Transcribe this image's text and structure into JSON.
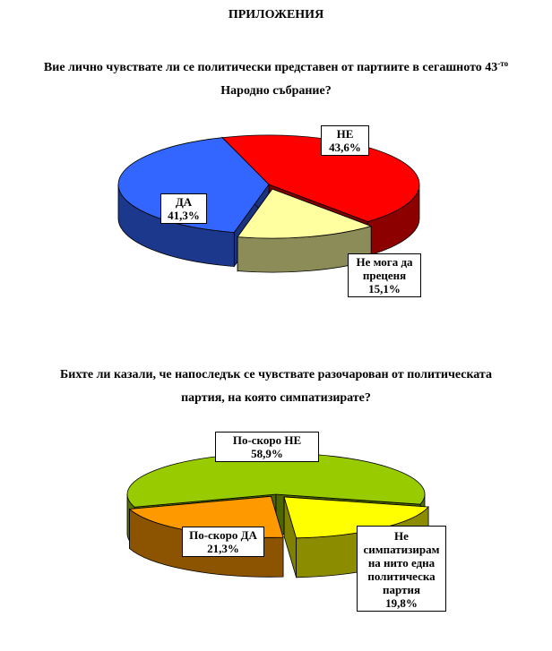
{
  "page": {
    "heading": "ПРИЛОЖЕНИЯ"
  },
  "q1": {
    "text": "Вие лично чувствате ли се политически представен от партиите в сегашното 43",
    "sup": "-то",
    "text2": "Народно събрание?"
  },
  "q2": {
    "line1": "Бихте ли казали, че напоследък се чувствате разочарован от политическата",
    "line2": "партия, на която симпатизирате?"
  },
  "chart_data": [
    {
      "type": "pie",
      "title": "Вие лично чувствате ли се политически представен от партиите в сегашното 43-то Народно събрание?",
      "slices": [
        {
          "label": "НЕ",
          "value": 43.6,
          "value_text": "43,6%",
          "color": "#ff0000"
        },
        {
          "label": "Не мога да преценя",
          "value": 15.1,
          "value_text": "15,1%",
          "color": "#ffffa0"
        },
        {
          "label": "ДА",
          "value": 41.3,
          "value_text": "41,3%",
          "color": "#3366ff"
        }
      ]
    },
    {
      "type": "pie",
      "title": "Бихте ли казали, че напоследък се чувствате разочарован от политическата партия, на която симпатизирате?",
      "slices": [
        {
          "label": "По-скоро НЕ",
          "value": 58.9,
          "value_text": "58,9%",
          "color": "#99cc00"
        },
        {
          "label": "Не симпатизирам на нито една политическа партия",
          "value": 19.8,
          "value_text": "19,8%",
          "color": "#ffff00"
        },
        {
          "label": "По-скоро ДА",
          "value": 21.3,
          "value_text": "21,3%",
          "color": "#ff9900"
        }
      ]
    }
  ]
}
